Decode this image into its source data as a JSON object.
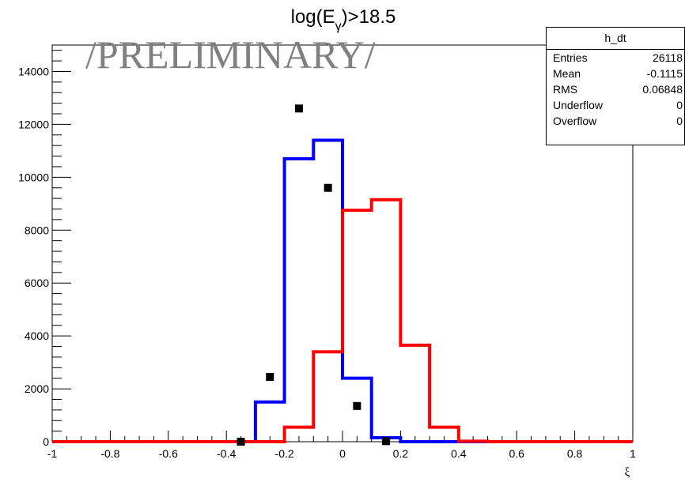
{
  "title": {
    "base": "log(E",
    "sub": "γ",
    "rest": ")>18.5"
  },
  "watermark": "/PRELIMINARY/",
  "stats": {
    "name": "h_dt",
    "rows": [
      {
        "label": "Entries",
        "value": "26118"
      },
      {
        "label": "Mean",
        "value": "-0.1115"
      },
      {
        "label": "RMS",
        "value": "0.06848"
      },
      {
        "label": "Underflow",
        "value": "0"
      },
      {
        "label": "Overflow",
        "value": "0"
      }
    ]
  },
  "chart_data": {
    "type": "line",
    "title": "log(Eγ)>18.5",
    "xlabel": "ξ",
    "ylabel": "",
    "xlim": [
      -1,
      1
    ],
    "ylim": [
      0,
      15000
    ],
    "x_ticks": [
      -1,
      -0.8,
      -0.6,
      -0.4,
      -0.2,
      0,
      0.2,
      0.4,
      0.6,
      0.8,
      1
    ],
    "y_ticks": [
      0,
      2000,
      4000,
      6000,
      8000,
      10000,
      12000,
      14000
    ],
    "x_tick_labels": [
      "-1",
      "-0.8",
      "-0.6",
      "-0.4",
      "-0.2",
      "0",
      "0.2",
      "0.4",
      "0.6",
      "0.8",
      "1"
    ],
    "y_tick_labels": [
      "0",
      "2000",
      "4000",
      "6000",
      "8000",
      "10000",
      "12000",
      "14000"
    ],
    "bin_edges": [
      -1,
      -0.95,
      -0.9,
      -0.85,
      -0.8,
      -0.75,
      -0.7,
      -0.65,
      -0.6,
      -0.55,
      -0.5,
      -0.45,
      -0.4,
      -0.35,
      -0.3,
      -0.25,
      -0.2,
      -0.15,
      -0.1,
      -0.05,
      0,
      0.05,
      0.1,
      0.15,
      0.2,
      0.25,
      0.3,
      0.35,
      0.4,
      0.45,
      0.5,
      0.55,
      0.6,
      0.65,
      0.7,
      0.75,
      0.8,
      0.85,
      0.9,
      0.95,
      1
    ],
    "series": [
      {
        "color": "#0000ff",
        "style": "step",
        "values": [
          0,
          0,
          0,
          0,
          0,
          0,
          0,
          0,
          0,
          0,
          0,
          0,
          0,
          0,
          1500,
          1500,
          10700,
          10700,
          11400,
          11400,
          2400,
          2400,
          150,
          150,
          0,
          0,
          0,
          0,
          0,
          0,
          0,
          0,
          0,
          0,
          0,
          0,
          0,
          0,
          0,
          0
        ]
      },
      {
        "color": "#ff0000",
        "style": "step",
        "values": [
          0,
          0,
          0,
          0,
          0,
          0,
          0,
          0,
          0,
          0,
          0,
          0,
          0,
          0,
          0,
          0,
          550,
          550,
          3400,
          3400,
          8750,
          8750,
          9150,
          9150,
          3650,
          3650,
          550,
          550,
          20,
          20,
          0,
          0,
          0,
          0,
          0,
          0,
          0,
          0,
          0,
          0
        ]
      },
      {
        "color": "#000000",
        "style": "markers",
        "x": [
          -0.35,
          -0.25,
          -0.15,
          -0.05,
          0.05,
          0.15
        ],
        "y": [
          0,
          2450,
          12600,
          9600,
          1350,
          20
        ]
      }
    ]
  }
}
